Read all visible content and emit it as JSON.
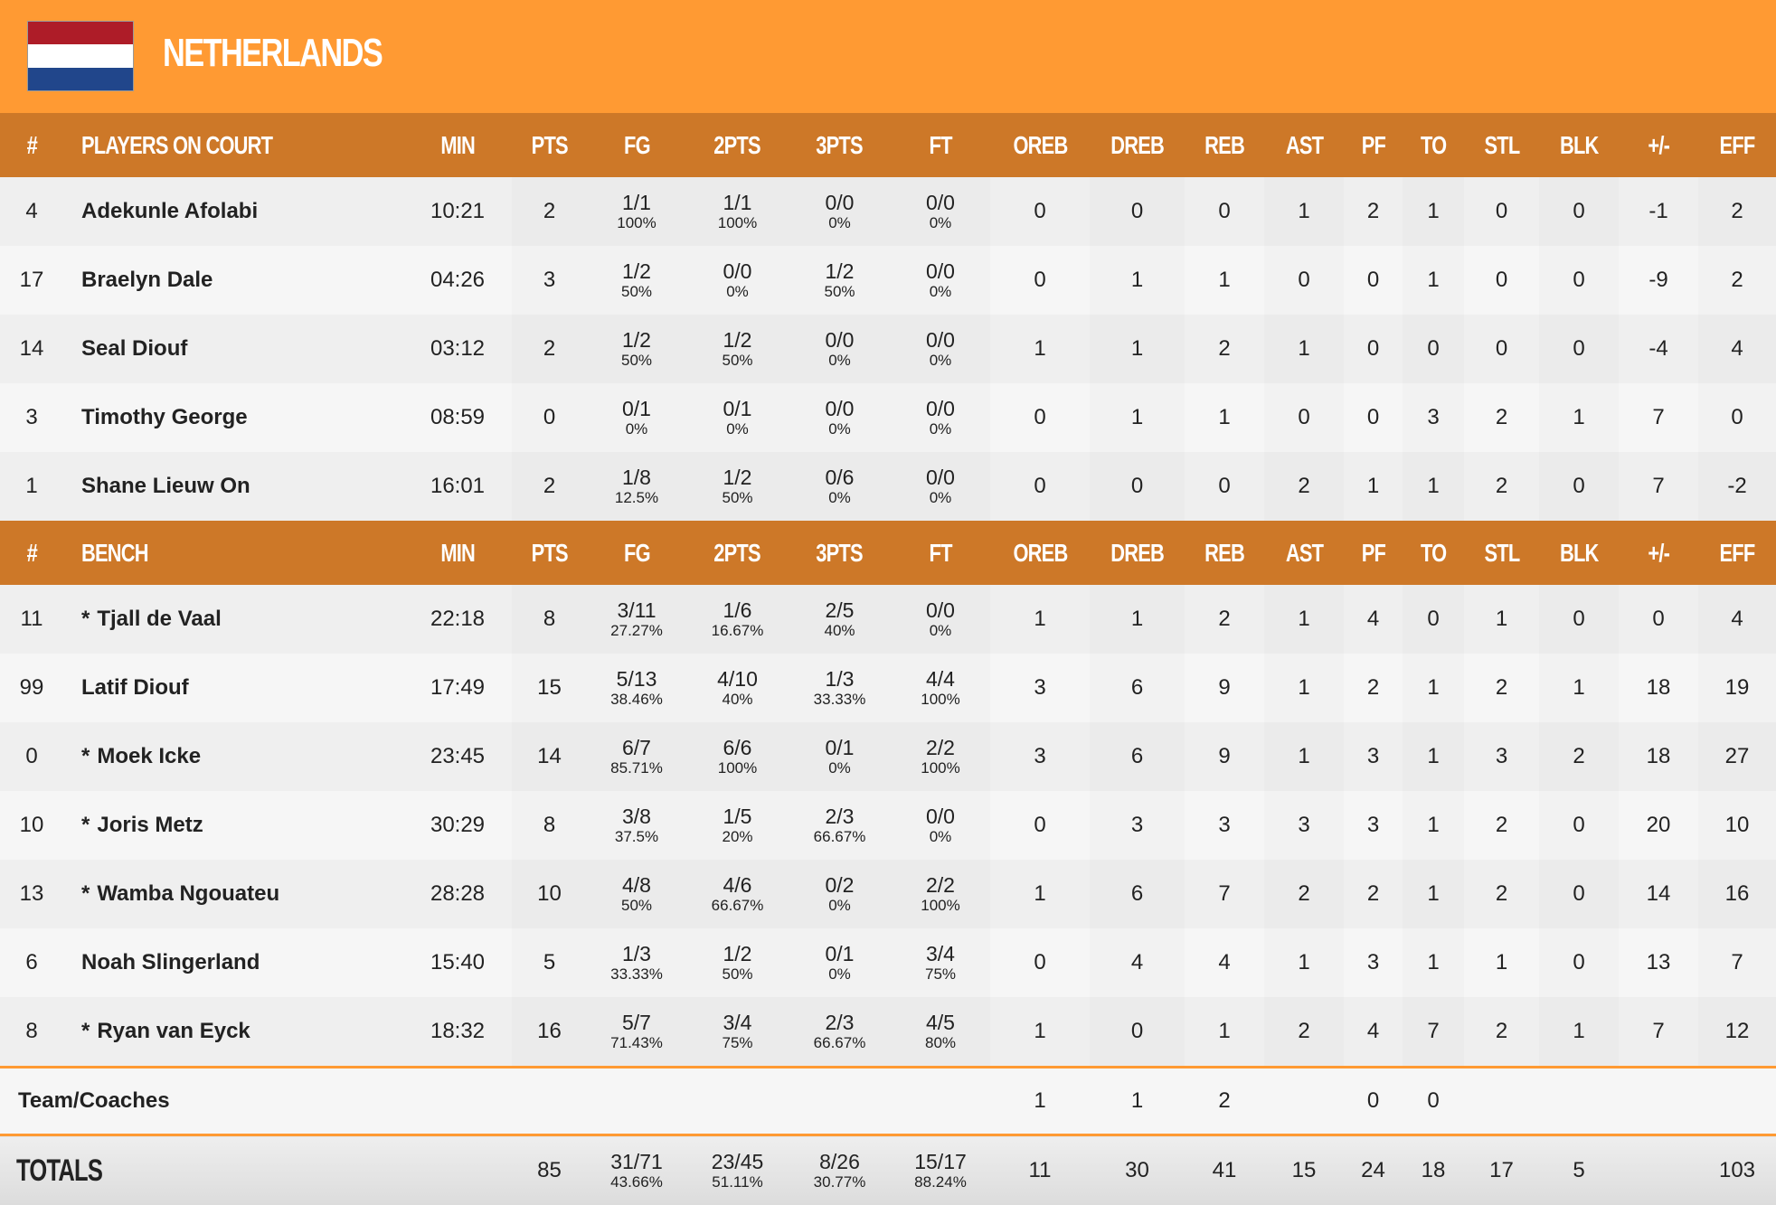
{
  "team": {
    "name": "NETHERLANDS",
    "flag_colors": [
      "#ae1c28",
      "#ffffff",
      "#21468b"
    ]
  },
  "colors": {
    "banner": "#ff9a33",
    "header": "#cd7828",
    "player_name": "#e8304a"
  },
  "columns": [
    "#",
    "MIN",
    "PTS",
    "FG",
    "2PTS",
    "3PTS",
    "FT",
    "OREB",
    "DREB",
    "REB",
    "AST",
    "PF",
    "TO",
    "STL",
    "BLK",
    "+/-",
    "EFF"
  ],
  "sections": [
    {
      "title": "PLAYERS ON COURT",
      "players": [
        {
          "num": "4",
          "star": "",
          "name": "Adekunle Afolabi",
          "min": "10:21",
          "pts": "2",
          "fg": [
            "1/1",
            "100%"
          ],
          "p2": [
            "1/1",
            "100%"
          ],
          "p3": [
            "0/0",
            "0%"
          ],
          "ft": [
            "0/0",
            "0%"
          ],
          "stats": [
            "0",
            "0",
            "0",
            "1",
            "2",
            "1",
            "0",
            "0",
            "-1",
            "2"
          ]
        },
        {
          "num": "17",
          "star": "",
          "name": "Braelyn Dale",
          "min": "04:26",
          "pts": "3",
          "fg": [
            "1/2",
            "50%"
          ],
          "p2": [
            "0/0",
            "0%"
          ],
          "p3": [
            "1/2",
            "50%"
          ],
          "ft": [
            "0/0",
            "0%"
          ],
          "stats": [
            "0",
            "1",
            "1",
            "0",
            "0",
            "1",
            "0",
            "0",
            "-9",
            "2"
          ]
        },
        {
          "num": "14",
          "star": "",
          "name": "Seal Diouf",
          "min": "03:12",
          "pts": "2",
          "fg": [
            "1/2",
            "50%"
          ],
          "p2": [
            "1/2",
            "50%"
          ],
          "p3": [
            "0/0",
            "0%"
          ],
          "ft": [
            "0/0",
            "0%"
          ],
          "stats": [
            "1",
            "1",
            "2",
            "1",
            "0",
            "0",
            "0",
            "0",
            "-4",
            "4"
          ]
        },
        {
          "num": "3",
          "star": "",
          "name": "Timothy George",
          "min": "08:59",
          "pts": "0",
          "fg": [
            "0/1",
            "0%"
          ],
          "p2": [
            "0/1",
            "0%"
          ],
          "p3": [
            "0/0",
            "0%"
          ],
          "ft": [
            "0/0",
            "0%"
          ],
          "stats": [
            "0",
            "1",
            "1",
            "0",
            "0",
            "3",
            "2",
            "1",
            "7",
            "0"
          ]
        },
        {
          "num": "1",
          "star": "",
          "name": "Shane Lieuw On",
          "min": "16:01",
          "pts": "2",
          "fg": [
            "1/8",
            "12.5%"
          ],
          "p2": [
            "1/2",
            "50%"
          ],
          "p3": [
            "0/6",
            "0%"
          ],
          "ft": [
            "0/0",
            "0%"
          ],
          "stats": [
            "0",
            "0",
            "0",
            "2",
            "1",
            "1",
            "2",
            "0",
            "7",
            "-2"
          ]
        }
      ]
    },
    {
      "title": "BENCH",
      "players": [
        {
          "num": "11",
          "star": "*",
          "name": "Tjall de Vaal",
          "min": "22:18",
          "pts": "8",
          "fg": [
            "3/11",
            "27.27%"
          ],
          "p2": [
            "1/6",
            "16.67%"
          ],
          "p3": [
            "2/5",
            "40%"
          ],
          "ft": [
            "0/0",
            "0%"
          ],
          "stats": [
            "1",
            "1",
            "2",
            "1",
            "4",
            "0",
            "1",
            "0",
            "0",
            "4"
          ]
        },
        {
          "num": "99",
          "star": "",
          "name": "Latif Diouf",
          "min": "17:49",
          "pts": "15",
          "fg": [
            "5/13",
            "38.46%"
          ],
          "p2": [
            "4/10",
            "40%"
          ],
          "p3": [
            "1/3",
            "33.33%"
          ],
          "ft": [
            "4/4",
            "100%"
          ],
          "stats": [
            "3",
            "6",
            "9",
            "1",
            "2",
            "1",
            "2",
            "1",
            "18",
            "19"
          ]
        },
        {
          "num": "0",
          "star": "*",
          "name": "Moek Icke",
          "min": "23:45",
          "pts": "14",
          "fg": [
            "6/7",
            "85.71%"
          ],
          "p2": [
            "6/6",
            "100%"
          ],
          "p3": [
            "0/1",
            "0%"
          ],
          "ft": [
            "2/2",
            "100%"
          ],
          "stats": [
            "3",
            "6",
            "9",
            "1",
            "3",
            "1",
            "3",
            "2",
            "18",
            "27"
          ]
        },
        {
          "num": "10",
          "star": "*",
          "name": "Joris Metz",
          "min": "30:29",
          "pts": "8",
          "fg": [
            "3/8",
            "37.5%"
          ],
          "p2": [
            "1/5",
            "20%"
          ],
          "p3": [
            "2/3",
            "66.67%"
          ],
          "ft": [
            "0/0",
            "0%"
          ],
          "stats": [
            "0",
            "3",
            "3",
            "3",
            "3",
            "1",
            "2",
            "0",
            "20",
            "10"
          ]
        },
        {
          "num": "13",
          "star": "*",
          "name": "Wamba Ngouateu",
          "min": "28:28",
          "pts": "10",
          "fg": [
            "4/8",
            "50%"
          ],
          "p2": [
            "4/6",
            "66.67%"
          ],
          "p3": [
            "0/2",
            "0%"
          ],
          "ft": [
            "2/2",
            "100%"
          ],
          "stats": [
            "1",
            "6",
            "7",
            "2",
            "2",
            "1",
            "2",
            "0",
            "14",
            "16"
          ]
        },
        {
          "num": "6",
          "star": "",
          "name": "Noah Slingerland",
          "min": "15:40",
          "pts": "5",
          "fg": [
            "1/3",
            "33.33%"
          ],
          "p2": [
            "1/2",
            "50%"
          ],
          "p3": [
            "0/1",
            "0%"
          ],
          "ft": [
            "3/4",
            "75%"
          ],
          "stats": [
            "0",
            "4",
            "4",
            "1",
            "3",
            "1",
            "1",
            "0",
            "13",
            "7"
          ]
        },
        {
          "num": "8",
          "star": "*",
          "name": "Ryan van Eyck",
          "min": "18:32",
          "pts": "16",
          "fg": [
            "5/7",
            "71.43%"
          ],
          "p2": [
            "3/4",
            "75%"
          ],
          "p3": [
            "2/3",
            "66.67%"
          ],
          "ft": [
            "4/5",
            "80%"
          ],
          "stats": [
            "1",
            "0",
            "1",
            "2",
            "4",
            "7",
            "2",
            "1",
            "7",
            "12"
          ]
        }
      ]
    }
  ],
  "team_row": {
    "label": "Team/Coaches",
    "min": "",
    "pts": "",
    "fg": [
      "",
      ""
    ],
    "p2": [
      "",
      ""
    ],
    "p3": [
      "",
      ""
    ],
    "ft": [
      "",
      ""
    ],
    "stats": [
      "1",
      "1",
      "2",
      "",
      "0",
      "0",
      "",
      "",
      "",
      ""
    ]
  },
  "totals": {
    "label": "TOTALS",
    "min": "",
    "pts": "85",
    "fg": [
      "31/71",
      "43.66%"
    ],
    "p2": [
      "23/45",
      "51.11%"
    ],
    "p3": [
      "8/26",
      "30.77%"
    ],
    "ft": [
      "15/17",
      "88.24%"
    ],
    "stats": [
      "11",
      "30",
      "41",
      "15",
      "24",
      "18",
      "17",
      "5",
      "",
      "103"
    ]
  }
}
